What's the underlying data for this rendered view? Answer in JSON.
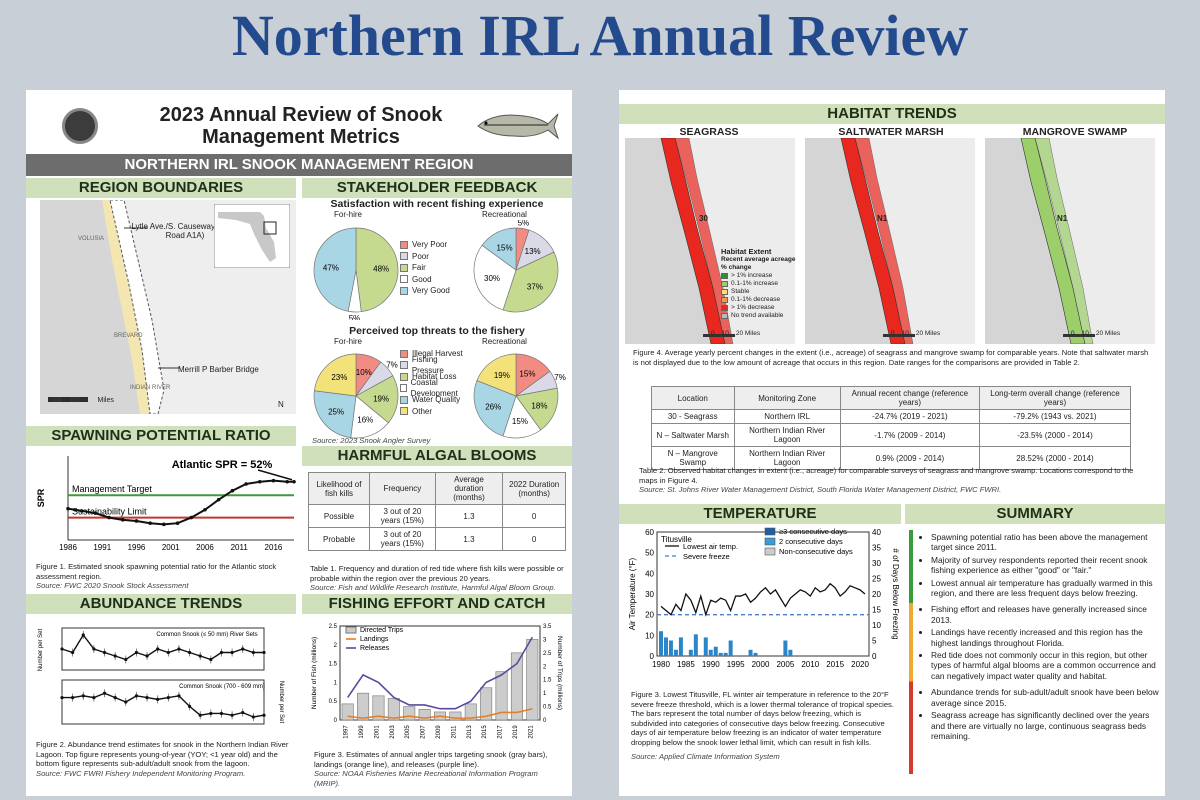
{
  "page_title": "Northern IRL Annual Review",
  "left": {
    "title_line1": "2023 Annual Review of Snook",
    "title_line2": "Management Metrics",
    "banner": "NORTHERN IRL SNOOK MANAGEMENT REGION",
    "region_boundaries": {
      "title": "REGION BOUNDARIES",
      "label_north": "Lytle Ave./S. Causeway (State Road A1A)",
      "label_south": "Merrill P Barber Bridge",
      "county_volusia": "VOLUSIA",
      "county_brevard": "BREVARD",
      "county_indian_river": "INDIAN RIVER",
      "scale": [
        "0",
        "10",
        "20"
      ],
      "scale_unit": "Miles",
      "north": "N"
    },
    "stakeholder": {
      "title": "STAKEHOLDER FEEDBACK",
      "satisfaction_title": "Satisfaction with recent fishing experience",
      "threats_title": "Perceived top threats to the fishery",
      "for_hire": "For-hire",
      "recreational": "Recreational",
      "sat_legend": [
        {
          "label": "Very Poor",
          "color": "#f28b82"
        },
        {
          "label": "Poor",
          "color": "#d9d9e8"
        },
        {
          "label": "Fair",
          "color": "#c5d98f"
        },
        {
          "label": "Good",
          "color": "#ffffff"
        },
        {
          "label": "Very Good",
          "color": "#a9d6e5"
        }
      ],
      "threat_legend": [
        {
          "label": "Illegal Harvest",
          "color": "#f28b82"
        },
        {
          "label": "Fishing Pressure",
          "color": "#d9d9e8"
        },
        {
          "label": "Habitat Loss",
          "color": "#c5d98f"
        },
        {
          "label": "Coastal Development",
          "color": "#ffffff"
        },
        {
          "label": "Water Quality",
          "color": "#a9d6e5"
        },
        {
          "label": "Other",
          "color": "#f3e27a"
        }
      ],
      "source": "Source: 2023 Snook Angler Survey"
    },
    "spr": {
      "title": "SPAWNING POTENTIAL RATIO",
      "annotation": "Atlantic SPR = 52%",
      "target": "Management Target",
      "limit": "Sustainability Limit",
      "ylabel": "SPR",
      "caption": "Figure 1. Estimated snook spawning potential ratio for the Atlantic stock assessment region.",
      "source": "Source: FWC 2020 Snook Stock Assessment"
    },
    "hab": {
      "title": "HARMFUL ALGAL BLOOMS",
      "headers": [
        "Likelihood of fish kills",
        "Frequency",
        "Average duration (months)",
        "2022 Duration (months)"
      ],
      "rows": [
        [
          "Possible",
          "3 out of 20 years (15%)",
          "1.3",
          "0"
        ],
        [
          "Probable",
          "3 out of 20 years (15%)",
          "1.3",
          "0"
        ]
      ],
      "caption": "Table 1. Frequency and duration of red tide where fish kills were possible or probable within the region over the previous 20 years.",
      "source": "Source: Fish and Wildlife Research Institute, Harmful Algal Bloom Group."
    },
    "abundance": {
      "title": "ABUNDANCE TRENDS",
      "top_label": "Common Snook (≤ 50 mm) River Sets",
      "bottom_label": "Common Snook (700 - 609 mm)",
      "ylabel_l": "Number per Set",
      "ylabel_r": "Number per Set",
      "caption": "Figure 2. Abundance trend estimates for snook in the Northern Indian River Lagoon. Top figure represents young-of-year (YOY; <1 year old) and the bottom figure represents sub-adult/adult snook from the lagoon.",
      "source": "Source: FWC FWRI Fishery Independent Monitoring Program."
    },
    "effort": {
      "title": "FISHING EFFORT AND CATCH",
      "legend": [
        "Directed Trips",
        "Landings",
        "Releases"
      ],
      "ylabel_l": "Number of Fish (millions)",
      "ylabel_r": "Number of Trips (millions)",
      "caption": "Figure 3. Estimates of annual angler trips targeting snook (gray bars), landings (orange line), and releases (purple line).",
      "source": "Source: NOAA Fisheries Marine Recreational Information Program (MRIP)."
    }
  },
  "right": {
    "habitat": {
      "title": "HABITAT TRENDS",
      "maps": [
        "SEAGRASS",
        "SALTWATER MARSH",
        "MANGROVE SWAMP"
      ],
      "map_tags": [
        "30",
        "N1",
        "N1"
      ],
      "scale": [
        "0",
        "10",
        "20 Miles"
      ],
      "legend_title": "Habitat Extent",
      "legend_sub": "Recent average acreage % change",
      "legend": [
        {
          "label": "> 1% increase",
          "color": "#2f8f2f"
        },
        {
          "label": "0.1-1% increase",
          "color": "#9ccf6a"
        },
        {
          "label": "Stable",
          "color": "#f3e27a"
        },
        {
          "label": "0.1-1% decrease",
          "color": "#f3a03c"
        },
        {
          "label": "> 1% decrease",
          "color": "#e8281e"
        },
        {
          "label": "No trend available",
          "color": "#bbbbbb"
        }
      ],
      "caption": "Figure 4. Average yearly percent changes in the extent (i.e., acreage) of seagrass and mangrove swamp for comparable years. Note that saltwater marsh is not displayed due to the low amount of acreage that occurs in this region. Date ranges for the comparisons are provided in Table 2.",
      "table_headers": [
        "Location",
        "Monitoring Zone",
        "Annual recent change (reference years)",
        "Long-term overall change (reference years)"
      ],
      "table_rows": [
        [
          "30 - Seagrass",
          "Northern IRL",
          "-24.7% (2019 - 2021)",
          "-79.2% (1943 vs. 2021)"
        ],
        [
          "N – Saltwater Marsh",
          "Northern Indian River Lagoon",
          "-1.7% (2009 - 2014)",
          "-23.5% (2000 - 2014)"
        ],
        [
          "N – Mangrove Swamp",
          "Northern Indian River Lagoon",
          "0.9% (2009 - 2014)",
          "28.52% (2000 - 2014)"
        ]
      ],
      "table_caption": "Table 2. Observed habitat changes in extent (i.e., acreage) for comparable surveys of seagrass and mangrove swamp. Locations correspond to the maps in Figure 4.",
      "table_source": "Source: St. Johns River Water Management District, South Florida Water Management District, FWC FWRI."
    },
    "temperature": {
      "title": "TEMPERATURE",
      "station": "Titusville",
      "legend": [
        "Lowest air temp.",
        "Severe freeze",
        "≥3 consecutive days",
        "2 consecutive days",
        "Non-consecutive days"
      ],
      "ylabel_l": "Air Temperature (°F)",
      "ylabel_r": "# of Days Below Freezing",
      "caption": "Figure 3. Lowest Titusville, FL winter air temperature in reference to the 20°F severe freeze threshold, which is a lower thermal tolerance of tropical species. The bars represent the total number of days below freezing, which is subdivided into categories of consecutive days below freezing. Consecutive days of air temperature below freezing is an indicator of water temperature dropping below the snook lower lethal limit, which can result in fish kills.",
      "source": "Source: Applied Climate Information System"
    },
    "summary": {
      "title": "SUMMARY",
      "items": [
        "Spawning potential ratio has been above the management target since 2011.",
        "Majority of survey respondents reported their recent snook fishing experience as either \"good\" or \"fair.\"",
        "Lowest annual air temperature has gradually warmed in this region, and there are less frequent days below freezing.",
        "Fishing effort and releases have generally increased since 2013.",
        "Landings have recently increased and this region has the highest landings throughout Florida.",
        "Red tide does not commonly occur in this region, but other types of harmful algal blooms are a common occurrence and can negatively impact water quality and habitat.",
        "Abundance trends for sub-adult/adult snook have been below average since 2015.",
        "Seagrass acreage has significantly declined over the years and there are virtually no large, continuous seagrass beds remaining."
      ]
    }
  },
  "chart_data": [
    {
      "type": "pie",
      "title": "Satisfaction with recent fishing experience",
      "series": [
        {
          "name": "For-hire",
          "labels": [
            "Very Poor",
            "Poor",
            "Fair",
            "Good",
            "Very Good"
          ],
          "values": [
            0,
            0,
            48,
            5,
            47
          ]
        },
        {
          "name": "Recreational",
          "labels": [
            "Very Poor",
            "Poor",
            "Fair",
            "Good",
            "Very Good"
          ],
          "values": [
            5,
            13,
            37,
            30,
            15
          ]
        }
      ]
    },
    {
      "type": "pie",
      "title": "Perceived top threats to the fishery",
      "series": [
        {
          "name": "For-hire",
          "labels": [
            "Illegal Harvest",
            "Fishing Pressure",
            "Habitat Loss",
            "Coastal Development",
            "Water Quality",
            "Other"
          ],
          "values": [
            10,
            7,
            19,
            16,
            25,
            23
          ]
        },
        {
          "name": "Recreational",
          "labels": [
            "Illegal Harvest",
            "Fishing Pressure",
            "Habitat Loss",
            "Coastal Development",
            "Water Quality",
            "Other"
          ],
          "values": [
            15,
            7,
            18,
            15,
            26,
            19
          ]
        }
      ]
    },
    {
      "type": "line",
      "title": "",
      "ylabel": "SPR",
      "xticks": [
        1986,
        1991,
        1996,
        2001,
        2006,
        2011,
        2016
      ],
      "x": [
        1986,
        1988,
        1990,
        1992,
        1994,
        1996,
        1998,
        2000,
        2002,
        2004,
        2006,
        2008,
        2010,
        2012,
        2014,
        2016,
        2018,
        2019
      ],
      "y": [
        0.28,
        0.26,
        0.24,
        0.2,
        0.18,
        0.17,
        0.15,
        0.14,
        0.15,
        0.2,
        0.27,
        0.36,
        0.44,
        0.5,
        0.52,
        0.53,
        0.52,
        0.52
      ],
      "target": 0.4,
      "limit": 0.2,
      "ylim": [
        0,
        0.75
      ]
    },
    {
      "type": "line",
      "title": "",
      "series": [
        {
          "name": "Common Snook (≤ 50 mm) River Sets",
          "values": [
            6,
            5,
            10,
            6,
            5,
            4,
            3,
            5,
            4,
            6,
            5,
            6,
            5,
            4,
            3,
            5,
            5,
            6,
            5,
            5
          ]
        },
        {
          "name": "Common Snook (700 - 609 mm)",
          "values": [
            3,
            3,
            3.2,
            3,
            3.5,
            3,
            2.5,
            3.2,
            3,
            2.8,
            3,
            3.2,
            2,
            1,
            1.2,
            1.2,
            1,
            1.3,
            0.8,
            1
          ]
        }
      ]
    },
    {
      "type": "bar",
      "title": "",
      "categories": [
        "1997",
        "1999",
        "2001",
        "2003",
        "2005",
        "2007",
        "2009",
        "2011",
        "2013",
        "2015",
        "2017",
        "2019",
        "2021"
      ],
      "series": [
        {
          "name": "Directed Trips",
          "values": [
            0.6,
            1.0,
            0.9,
            0.8,
            0.5,
            0.4,
            0.3,
            0.3,
            0.6,
            1.2,
            1.8,
            2.5,
            3.0
          ]
        },
        {
          "name": "Landings",
          "values": [
            0.1,
            0.05,
            0.1,
            0.05,
            0.1,
            0.05,
            0.1,
            0.05,
            0.05,
            0.1,
            0.2,
            0.2,
            0.3
          ]
        },
        {
          "name": "Releases",
          "values": [
            0.6,
            1.2,
            1.0,
            0.6,
            0.4,
            0.4,
            0.3,
            0.3,
            0.5,
            1.0,
            1.2,
            1.5,
            2.2
          ]
        }
      ],
      "ylim_left": [
        0,
        2.5
      ],
      "ylim_right": [
        0,
        3.5
      ]
    },
    {
      "type": "line",
      "title": "",
      "x_start": 1980,
      "xticks": [
        1980,
        1985,
        1990,
        1995,
        2000,
        2005,
        2010,
        2015,
        2020
      ],
      "lowest_temp": [
        24,
        22,
        20,
        25,
        22,
        30,
        27,
        21,
        29,
        20,
        27,
        26,
        28,
        27,
        22,
        29,
        29,
        30,
        26,
        28,
        31,
        33,
        30,
        32,
        28,
        24,
        28,
        30,
        32,
        31,
        29,
        33,
        31,
        32,
        35,
        33,
        29,
        31,
        34,
        33,
        32,
        30
      ],
      "days_below_freezing": [
        8,
        6,
        5,
        2,
        6,
        0,
        2,
        7,
        0,
        6,
        2,
        3,
        1,
        1,
        5,
        0,
        0,
        0,
        2,
        1,
        0,
        0,
        0,
        0,
        0,
        5,
        2,
        0,
        0,
        0,
        0,
        0,
        0,
        0,
        0,
        0,
        0,
        0,
        0,
        0,
        0,
        0
      ],
      "severe_freeze": 20,
      "ylim_left": [
        0,
        60
      ],
      "ylim_right": [
        0,
        40
      ]
    }
  ]
}
